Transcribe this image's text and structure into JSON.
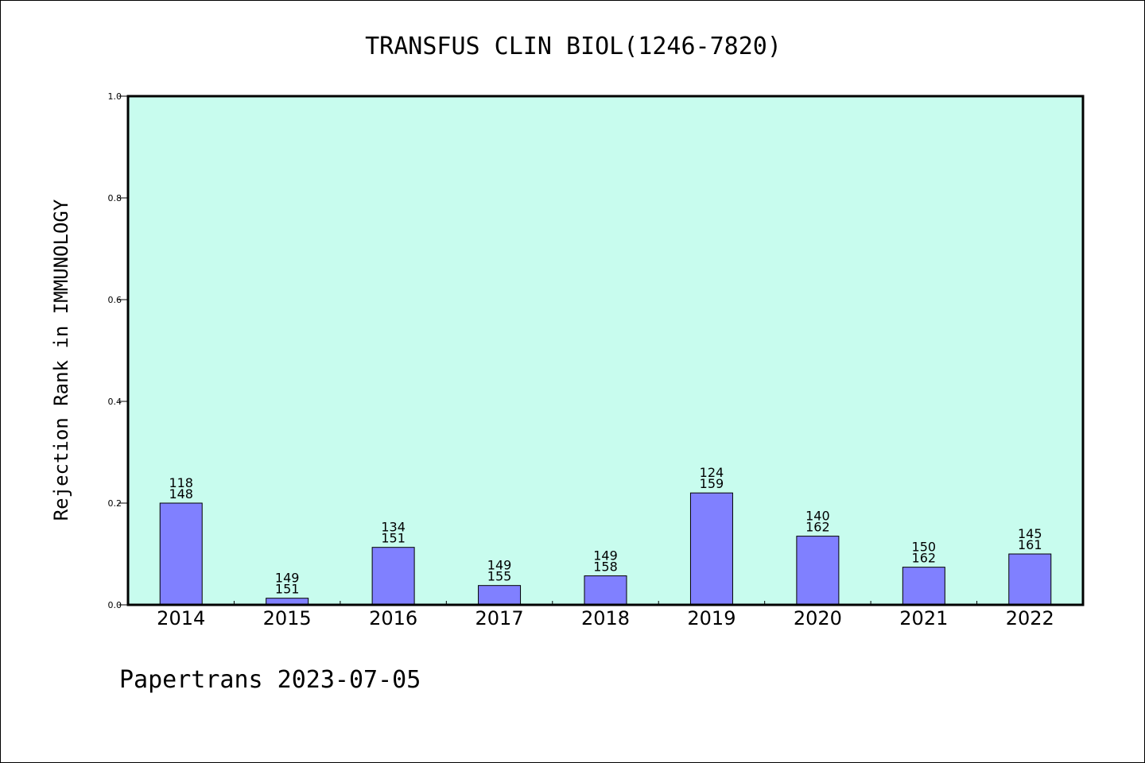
{
  "chart_data": {
    "type": "bar",
    "title": "TRANSFUS CLIN BIOL(1246-7820)",
    "ylabel": "Rejection Rank in IMMUNOLOGY",
    "xlabel": "",
    "ylim": [
      0,
      1.0
    ],
    "yticks": [
      "0.0",
      "0.2",
      "0.4",
      "0.6",
      "0.8",
      "1.0"
    ],
    "grid": false,
    "categories": [
      "2014",
      "2015",
      "2016",
      "2017",
      "2018",
      "2019",
      "2020",
      "2021",
      "2022"
    ],
    "values": [
      0.2,
      0.013,
      0.113,
      0.038,
      0.057,
      0.22,
      0.135,
      0.074,
      0.1
    ],
    "bar_labels_top": [
      "118",
      "149",
      "134",
      "149",
      "149",
      "124",
      "140",
      "150",
      "145"
    ],
    "bar_labels_bottom": [
      "148",
      "151",
      "151",
      "155",
      "158",
      "159",
      "162",
      "162",
      "161"
    ],
    "colors": {
      "bar": "#8080ff",
      "plot_background": "#c8fcee"
    }
  },
  "footer": "Papertrans 2023-07-05"
}
